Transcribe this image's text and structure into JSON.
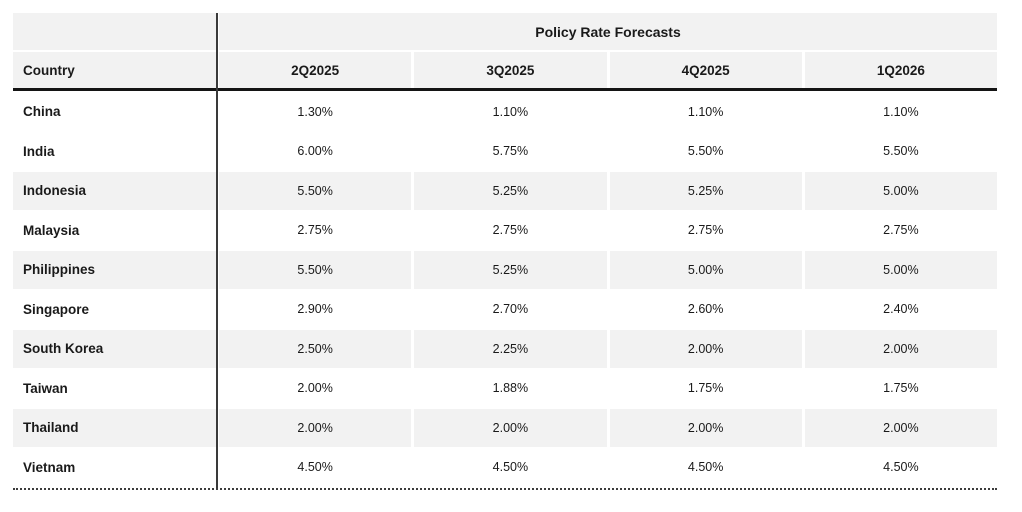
{
  "chart_data": {
    "type": "table",
    "title": "Policy Rate Forecasts",
    "row_header": "Country",
    "columns": [
      "2Q2025",
      "3Q2025",
      "4Q2025",
      "1Q2026"
    ],
    "rows": [
      {
        "country": "China",
        "values": [
          "1.30%",
          "1.10%",
          "1.10%",
          "1.10%"
        ]
      },
      {
        "country": "India",
        "values": [
          "6.00%",
          "5.75%",
          "5.50%",
          "5.50%"
        ]
      },
      {
        "country": "Indonesia",
        "values": [
          "5.50%",
          "5.25%",
          "5.25%",
          "5.00%"
        ]
      },
      {
        "country": "Malaysia",
        "values": [
          "2.75%",
          "2.75%",
          "2.75%",
          "2.75%"
        ]
      },
      {
        "country": "Philippines",
        "values": [
          "5.50%",
          "5.25%",
          "5.00%",
          "5.00%"
        ]
      },
      {
        "country": "Singapore",
        "values": [
          "2.90%",
          "2.70%",
          "2.60%",
          "2.40%"
        ]
      },
      {
        "country": "South Korea",
        "values": [
          "2.50%",
          "2.25%",
          "2.00%",
          "2.00%"
        ]
      },
      {
        "country": "Taiwan",
        "values": [
          "2.00%",
          "1.88%",
          "1.75%",
          "1.75%"
        ]
      },
      {
        "country": "Thailand",
        "values": [
          "2.00%",
          "2.00%",
          "2.00%",
          "2.00%"
        ]
      },
      {
        "country": "Vietnam",
        "values": [
          "4.50%",
          "4.50%",
          "4.50%",
          "4.50%"
        ]
      }
    ],
    "layout": {
      "stripe_color": "#f2f2f2",
      "text_color": "#1a1a1a",
      "header_rule_color": "#141414",
      "divider_color": "#3a3a3a",
      "striped_row_indices": [
        2,
        4,
        6,
        8
      ]
    }
  }
}
